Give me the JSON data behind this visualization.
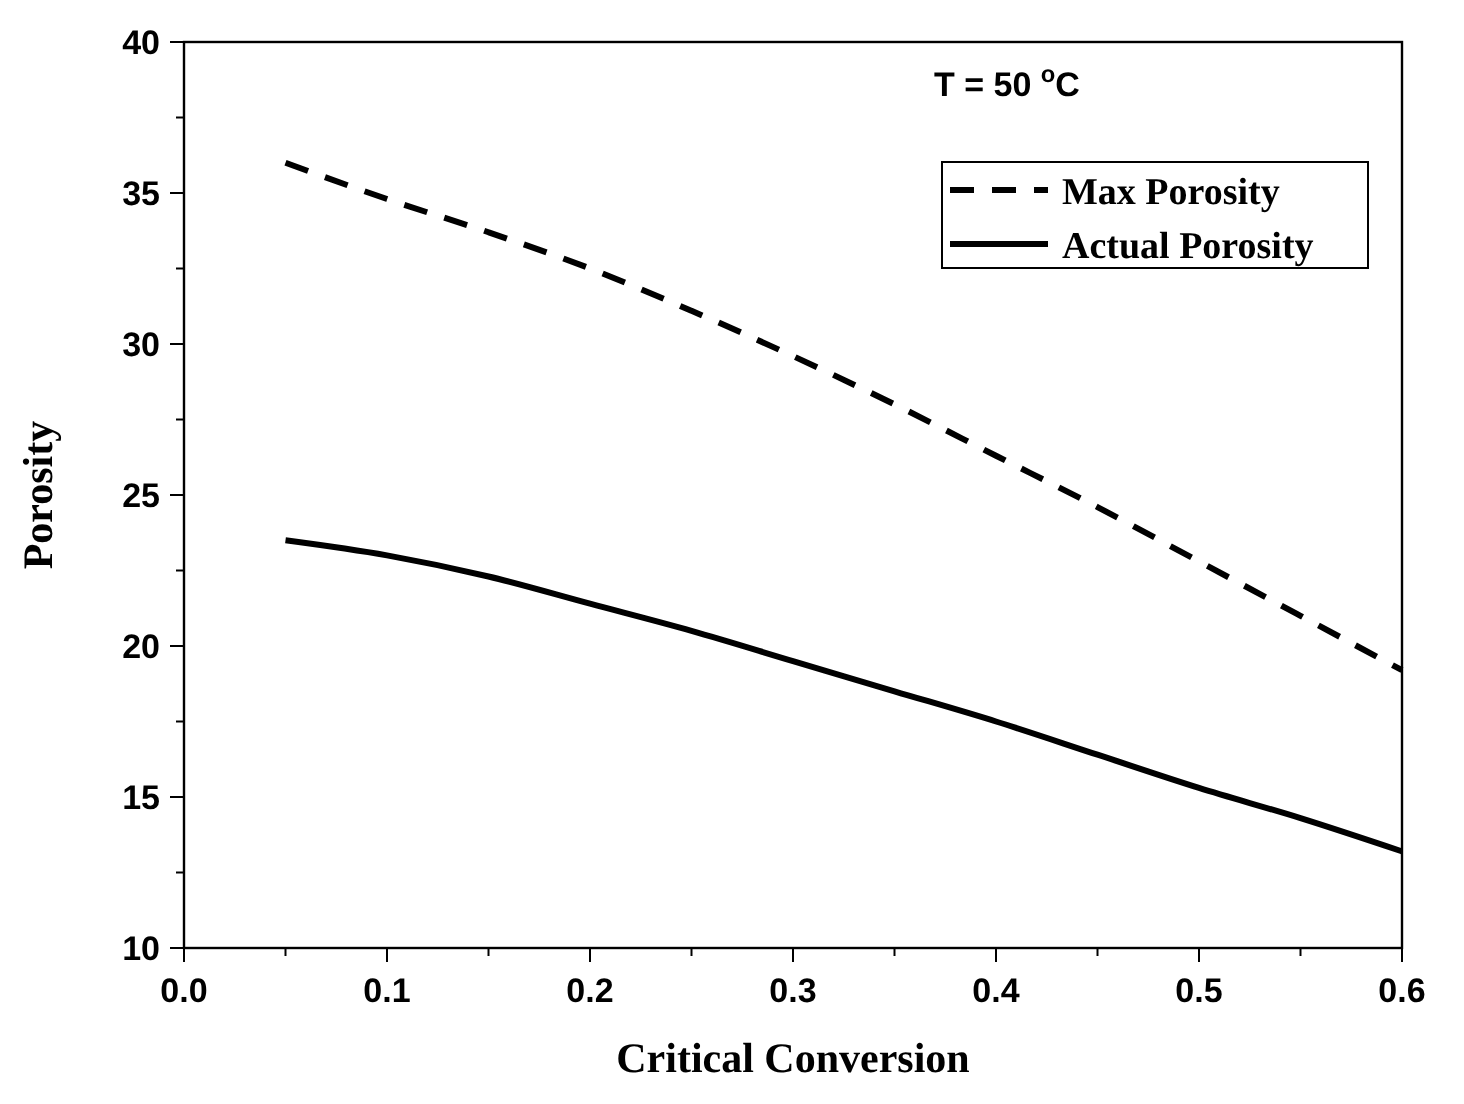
{
  "chart_data": {
    "type": "line",
    "xlabel": "Critical Conversion",
    "ylabel": "Porosity",
    "annotations": [
      "T = 50 $^{o}$C"
    ],
    "xlim": [
      0,
      0.6
    ],
    "ylim": [
      10,
      40
    ],
    "xticks": [
      {
        "value": 0,
        "label": "0.0"
      },
      {
        "value": 0.05,
        "label": null
      },
      0.1,
      {
        "value": 0.15,
        "label": null
      },
      0.2,
      {
        "value": 0.25,
        "label": null
      },
      0.3,
      {
        "value": 0.35,
        "label": null
      },
      0.4,
      {
        "value": 0.45,
        "label": null
      },
      0.5,
      {
        "value": 0.55,
        "label": null
      },
      0.6
    ],
    "yticks": [
      10,
      {
        "value": 12.5,
        "label": null
      },
      15,
      {
        "value": 17.5,
        "label": null
      },
      20,
      {
        "value": 22.5,
        "label": null
      },
      25,
      {
        "value": 27.5,
        "label": null
      },
      30,
      {
        "value": 32.5,
        "label": null
      },
      35,
      {
        "value": 37.5,
        "label": null
      },
      40
    ],
    "x": [
      0.05,
      0.1,
      0.15,
      0.2,
      0.25,
      0.3,
      0.35,
      0.4,
      0.45,
      0.5,
      0.55,
      0.6
    ],
    "legend": "top right",
    "grid": false,
    "series": [
      {
        "name": "Max Porosity",
        "color": "#000000",
        "line_style": "dashed",
        "values": [
          36.0,
          34.8,
          33.7,
          32.5,
          31.1,
          29.6,
          28.0,
          26.3,
          24.6,
          22.8,
          21.0,
          19.2
        ]
      },
      {
        "name": "Actual Porosity",
        "color": "#000000",
        "line_style": "solid",
        "values": [
          23.5,
          23.0,
          22.3,
          21.4,
          20.5,
          19.5,
          18.5,
          17.5,
          16.4,
          15.3,
          14.3,
          13.2
        ]
      }
    ]
  }
}
